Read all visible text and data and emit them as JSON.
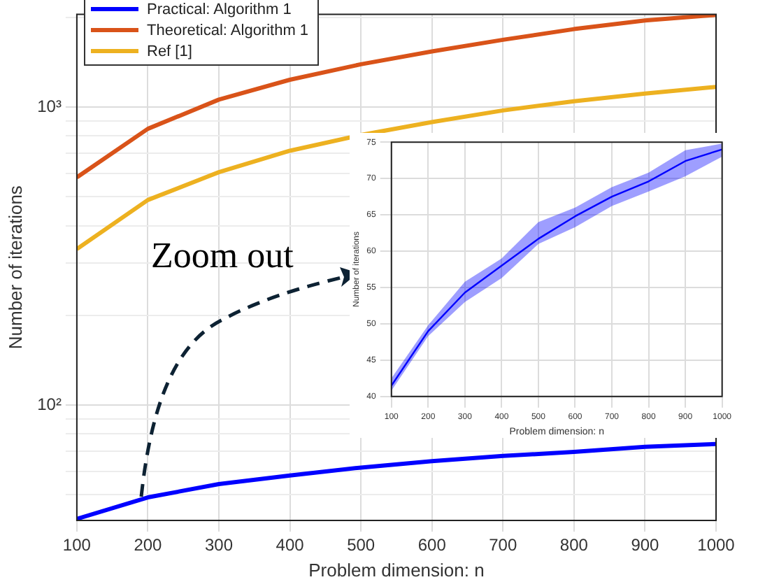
{
  "chart_data": [
    {
      "type": "line",
      "xlabel": "Problem dimension: n",
      "ylabel": "Number of iterations",
      "log": "y",
      "grid": true,
      "legend": "top left",
      "annotations": [
        "Zoom out"
      ],
      "x": [
        100,
        200,
        300,
        400,
        500,
        600,
        700,
        800,
        900,
        1000
      ],
      "xlim": [
        100,
        1000
      ],
      "xticks": [
        100,
        200,
        300,
        400,
        500,
        600,
        700,
        800,
        900,
        1000
      ],
      "ylim": [
        41,
        2050
      ],
      "yticks": [
        {
          "value": 50,
          "label": null
        },
        {
          "value": 60,
          "label": null
        },
        {
          "value": 70,
          "label": null
        },
        {
          "value": 80,
          "label": null
        },
        {
          "value": 90,
          "label": null
        },
        {
          "value": 100,
          "label": "10²"
        },
        {
          "value": 200,
          "label": null
        },
        {
          "value": 300,
          "label": null
        },
        {
          "value": 400,
          "label": null
        },
        {
          "value": 500,
          "label": null
        },
        {
          "value": 600,
          "label": null
        },
        {
          "value": 700,
          "label": null
        },
        {
          "value": 800,
          "label": null
        },
        {
          "value": 900,
          "label": null
        },
        {
          "value": 1000,
          "label": "10³"
        },
        {
          "value": 2000,
          "label": null
        }
      ],
      "series": [
        {
          "name": "Practical: Algorithm 1",
          "color": "#0000ff",
          "values": [
            41.5,
            49,
            54.3,
            58,
            61.7,
            64.8,
            67.5,
            69.6,
            72.4,
            74
          ]
        },
        {
          "name": "Theoretical: Algorithm 1",
          "color": "#d95319",
          "values": [
            581,
            846,
            1060,
            1236,
            1393,
            1538,
            1683,
            1828,
            1954,
            2040
          ]
        },
        {
          "name": "Ref [1]",
          "color": "#edb120",
          "values": [
            334,
            488,
            605,
            714,
            806,
            891,
            975,
            1047,
            1111,
            1169
          ]
        }
      ]
    },
    {
      "type": "line",
      "xlabel": "Problem dimension: n",
      "ylabel": "Number of iterations",
      "grid": true,
      "x": [
        100,
        200,
        300,
        400,
        500,
        600,
        700,
        800,
        900,
        1000
      ],
      "xlim": [
        100,
        1000
      ],
      "xticks": [
        100,
        200,
        300,
        400,
        500,
        600,
        700,
        800,
        900,
        1000
      ],
      "ylim": [
        40,
        75
      ],
      "yticks": [
        40,
        45,
        50,
        55,
        60,
        65,
        70,
        75
      ],
      "series": [
        {
          "color": "#0000ff",
          "values": [
            41.5,
            49,
            54.3,
            58,
            61.7,
            64.8,
            67.5,
            69.6,
            72.4,
            74
          ],
          "lower": [
            40.8,
            48.3,
            53,
            56.3,
            61,
            63.3,
            66.2,
            68.2,
            70.3,
            73
          ],
          "upper": [
            42.5,
            49.8,
            55.8,
            59,
            64,
            66,
            68.8,
            70.8,
            73.9,
            74.8
          ]
        }
      ]
    }
  ]
}
